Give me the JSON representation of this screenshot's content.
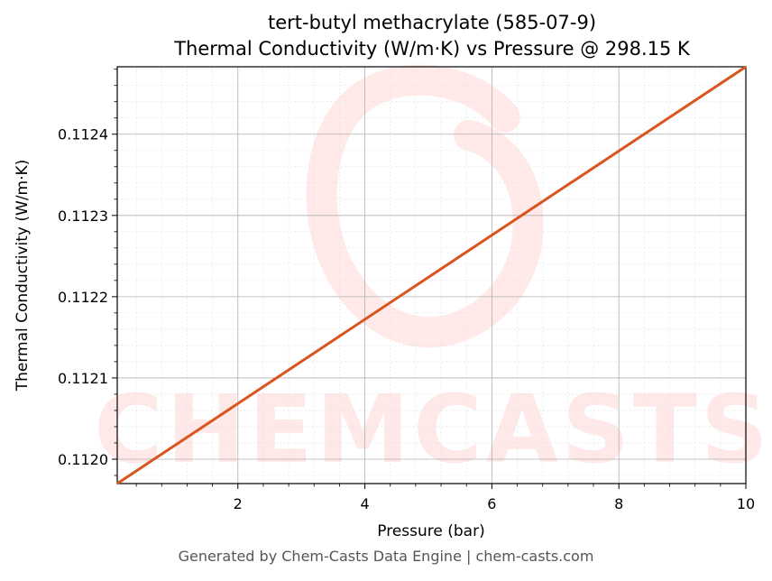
{
  "chart_data": {
    "type": "line",
    "title_line1": "tert-butyl methacrylate (585-07-9)",
    "title_line2": "Thermal Conductivity (W/m·K) vs Pressure @ 298.15 K",
    "xlabel": "Pressure (bar)",
    "ylabel": "Thermal Conductivity (W/m·K)",
    "xlim": [
      0.1,
      10
    ],
    "ylim": [
      0.11197,
      0.112483
    ],
    "x_ticks": [
      2,
      4,
      6,
      8,
      10
    ],
    "x_tick_labels": [
      "2",
      "4",
      "6",
      "8",
      "10"
    ],
    "y_ticks": [
      0.112,
      0.1121,
      0.1122,
      0.1123,
      0.1124
    ],
    "y_tick_labels": [
      "0.1120",
      "0.1121",
      "0.1122",
      "0.1123",
      "0.1124"
    ],
    "grid": true,
    "series": [
      {
        "color": "#d9541e",
        "x": [
          0.1,
          10
        ],
        "y": [
          0.11197,
          0.112483
        ]
      }
    ],
    "watermark": "CHEMCASTS"
  },
  "footer": "Generated by Chem-Casts Data Engine | chem-casts.com"
}
